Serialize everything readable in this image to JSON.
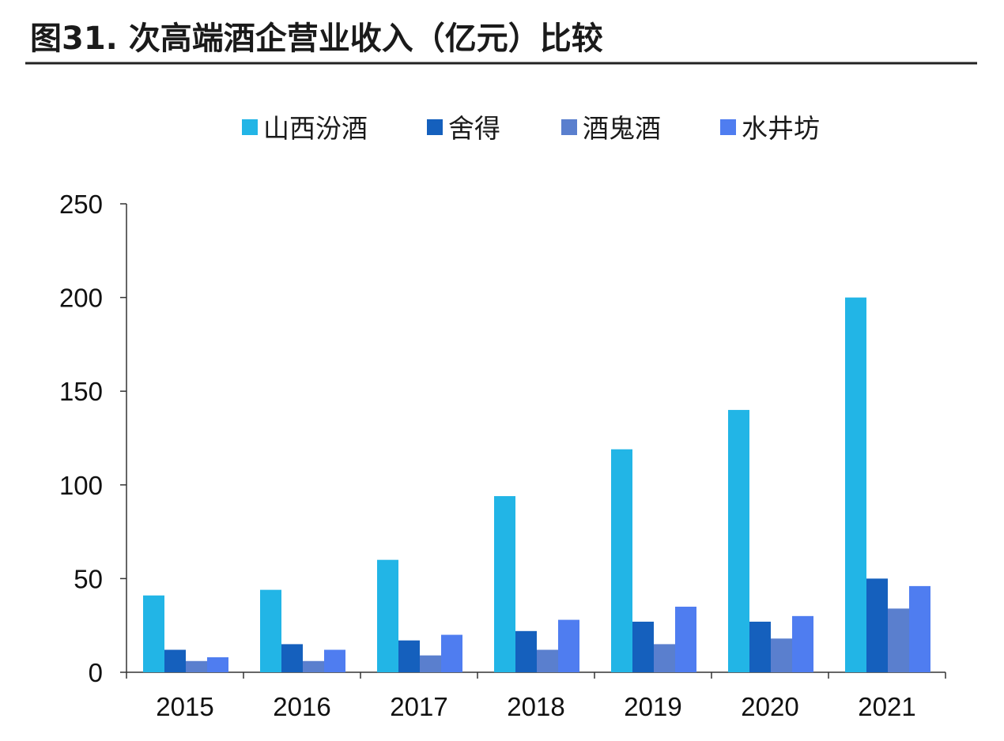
{
  "figure": {
    "title": "图31. 次高端酒企营业收入（亿元）比较"
  },
  "chart_data": {
    "type": "bar",
    "title": "图31. 次高端酒企营业收入（亿元）比较",
    "xlabel": "",
    "ylabel": "",
    "categories": [
      "2015",
      "2016",
      "2017",
      "2018",
      "2019",
      "2020",
      "2021"
    ],
    "ylim": [
      0,
      250
    ],
    "yticks": [
      0,
      50,
      100,
      150,
      200,
      250
    ],
    "grid": false,
    "legend_position": "top",
    "series": [
      {
        "name": "山西汾酒",
        "color": "#22b5e6",
        "values": [
          41,
          44,
          60,
          94,
          119,
          140,
          200
        ]
      },
      {
        "name": "舍得",
        "color": "#1560bd",
        "values": [
          12,
          15,
          17,
          22,
          27,
          27,
          50
        ]
      },
      {
        "name": "酒鬼酒",
        "color": "#5a7fce",
        "values": [
          6,
          6,
          9,
          12,
          15,
          18,
          34
        ]
      },
      {
        "name": "水井坊",
        "color": "#4f7df0",
        "values": [
          8,
          12,
          20,
          28,
          35,
          30,
          46
        ]
      }
    ]
  }
}
